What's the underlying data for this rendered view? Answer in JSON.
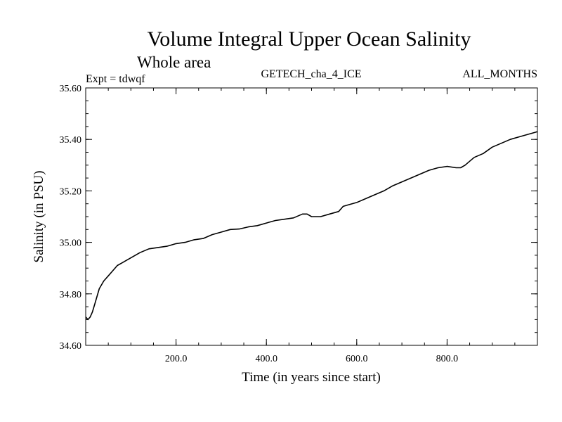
{
  "chart_data": {
    "type": "line",
    "title": "Volume Integral Upper Ocean Salinity",
    "subtitle": "Whole area",
    "annotations": {
      "left": "Expt = tdwqf",
      "center": "GETECH_cha_4_ICE",
      "right": "ALL_MONTHS"
    },
    "xlabel": "Time (in years since start)",
    "ylabel": "Salinity (in PSU)",
    "xlim": [
      0,
      1000
    ],
    "ylim": [
      34.6,
      35.6
    ],
    "x_ticks": [
      200,
      400,
      600,
      800
    ],
    "x_tick_labels": [
      "200.0",
      "400.0",
      "600.0",
      "800.0"
    ],
    "x_minor_step": 50,
    "y_ticks": [
      34.6,
      34.8,
      35.0,
      35.2,
      35.4,
      35.6
    ],
    "y_tick_labels": [
      "34.60",
      "34.80",
      "35.00",
      "35.20",
      "35.40",
      "35.60"
    ],
    "y_minor_step": 0.05,
    "grid": false,
    "series": [
      {
        "x": [
          0,
          5,
          10,
          15,
          20,
          30,
          40,
          50,
          60,
          70,
          80,
          90,
          100,
          120,
          140,
          160,
          180,
          200,
          220,
          240,
          260,
          280,
          300,
          320,
          340,
          360,
          380,
          400,
          420,
          440,
          460,
          480,
          490,
          500,
          520,
          540,
          560,
          570,
          580,
          600,
          620,
          640,
          660,
          680,
          700,
          720,
          740,
          760,
          780,
          800,
          820,
          830,
          840,
          850,
          860,
          880,
          900,
          920,
          940,
          960,
          980,
          1000
        ],
        "y": [
          34.71,
          34.7,
          34.71,
          34.73,
          34.76,
          34.82,
          34.85,
          34.87,
          34.89,
          34.91,
          34.92,
          34.93,
          34.94,
          34.96,
          34.975,
          34.98,
          34.985,
          34.995,
          35.0,
          35.01,
          35.015,
          35.03,
          35.04,
          35.05,
          35.052,
          35.06,
          35.065,
          35.075,
          35.085,
          35.09,
          35.095,
          35.11,
          35.11,
          35.1,
          35.1,
          35.11,
          35.12,
          35.14,
          35.145,
          35.155,
          35.17,
          35.185,
          35.2,
          35.22,
          35.235,
          35.25,
          35.265,
          35.28,
          35.29,
          35.295,
          35.29,
          35.29,
          35.3,
          35.315,
          35.33,
          35.345,
          35.37,
          35.385,
          35.4,
          35.41,
          35.42,
          35.43
        ]
      }
    ]
  }
}
